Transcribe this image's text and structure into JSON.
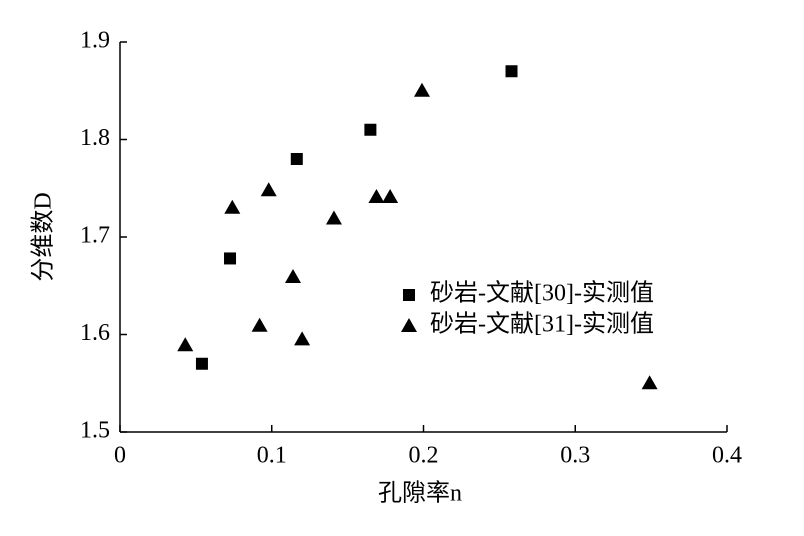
{
  "chart_data": {
    "type": "scatter",
    "x_label": "孔隙率n",
    "y_label": "分维数D",
    "xlim": [
      0,
      0.4
    ],
    "ylim": [
      1.5,
      1.9
    ],
    "xticks": [
      0,
      0.1,
      0.2,
      0.3,
      0.4
    ],
    "yticks": [
      1.5,
      1.6,
      1.7,
      1.8,
      1.9
    ],
    "legend": "right",
    "series": [
      {
        "name": "砂岩-文献[30]-实测值",
        "marker": "square",
        "color": "#000000",
        "x": [
          0.054,
          0.0725,
          0.1165,
          0.165,
          0.258
        ],
        "values": [
          1.57,
          1.678,
          1.78,
          1.81,
          1.87
        ]
      },
      {
        "name": "砂岩-文献[31]-实测值",
        "marker": "triangle",
        "color": "#000000",
        "x": [
          0.043,
          0.074,
          0.098,
          0.092,
          0.114,
          0.12,
          0.141,
          0.169,
          0.178,
          0.199,
          0.349
        ],
        "values": [
          1.589,
          1.73,
          1.748,
          1.609,
          1.659,
          1.595,
          1.719,
          1.741,
          1.741,
          1.85,
          1.55
        ]
      }
    ]
  }
}
